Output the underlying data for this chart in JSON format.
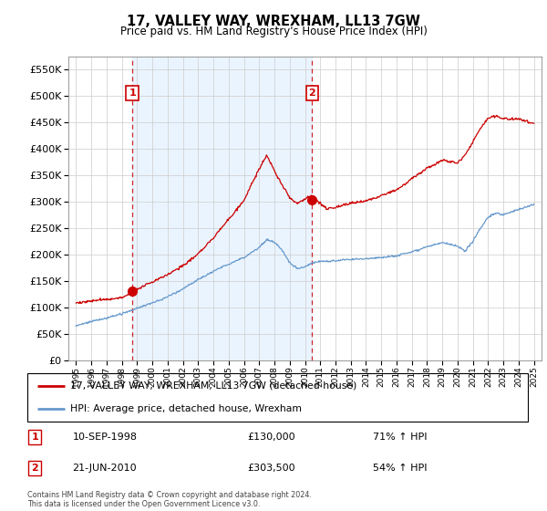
{
  "title": "17, VALLEY WAY, WREXHAM, LL13 7GW",
  "subtitle": "Price paid vs. HM Land Registry's House Price Index (HPI)",
  "hpi_color": "#6699cc",
  "price_color": "#cc0000",
  "vline_color": "#cc0000",
  "shade_color": "#ddeeff",
  "ylim": [
    0,
    575000
  ],
  "yticks": [
    0,
    50000,
    100000,
    150000,
    200000,
    250000,
    300000,
    350000,
    400000,
    450000,
    500000,
    550000
  ],
  "sale1_date_num": 1998.69,
  "sale1_price": 130000,
  "sale2_date_num": 2010.47,
  "sale2_price": 303500,
  "legend_house": "17, VALLEY WAY, WREXHAM, LL13 7GW (detached house)",
  "legend_hpi": "HPI: Average price, detached house, Wrexham",
  "sale1_text": "10-SEP-1998",
  "sale1_amount": "£130,000",
  "sale1_hpi": "71% ↑ HPI",
  "sale2_text": "21-JUN-2010",
  "sale2_amount": "£303,500",
  "sale2_hpi": "54% ↑ HPI",
  "footnote": "Contains HM Land Registry data © Crown copyright and database right 2024.\nThis data is licensed under the Open Government Licence v3.0.",
  "xmin": 1994.5,
  "xmax": 2025.5,
  "xticks": [
    1995,
    1996,
    1997,
    1998,
    1999,
    2000,
    2001,
    2002,
    2003,
    2004,
    2005,
    2006,
    2007,
    2008,
    2009,
    2010,
    2011,
    2012,
    2013,
    2014,
    2015,
    2016,
    2017,
    2018,
    2019,
    2020,
    2021,
    2022,
    2023,
    2024,
    2025
  ]
}
